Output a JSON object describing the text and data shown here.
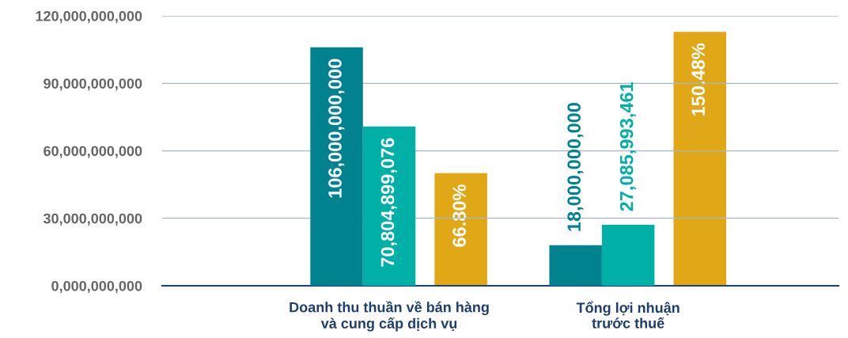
{
  "chart_data": {
    "type": "bar",
    "categories": [
      "Doanh thu thuần về bán hàng\nvà cung cấp dịch vụ",
      "Tổng lợi nhuận\ntrước thuế"
    ],
    "series": [
      {
        "color": "#00838f",
        "values": [
          106000000000,
          18000000000
        ],
        "value_labels": [
          "106,000,000,000",
          "18,000,000,000"
        ]
      },
      {
        "color": "#00b0a6",
        "values": [
          70804899076,
          27085993461
        ],
        "value_labels": [
          "70,804,899,076",
          "27,085,993,461"
        ]
      },
      {
        "color": "#e0a817",
        "values": [
          66.8,
          150.48
        ],
        "value_labels": [
          "66.80%",
          "150.48%"
        ],
        "axis": "y2"
      }
    ],
    "ylim": [
      0,
      120000000000
    ],
    "yticks": [
      {
        "value": 0,
        "label": "0,000,000,000"
      },
      {
        "value": 30000000000,
        "label": "30,000,000,000"
      },
      {
        "value": 60000000000,
        "label": "60,000,000,000"
      },
      {
        "value": 90000000000,
        "label": "90,000,000,000"
      },
      {
        "value": 120000000000,
        "label": "120,000,000,000"
      }
    ],
    "y2lim": [
      0,
      160
    ],
    "tick_labels": [
      "x",
      "y"
    ],
    "grid": "y",
    "legend": false
  }
}
